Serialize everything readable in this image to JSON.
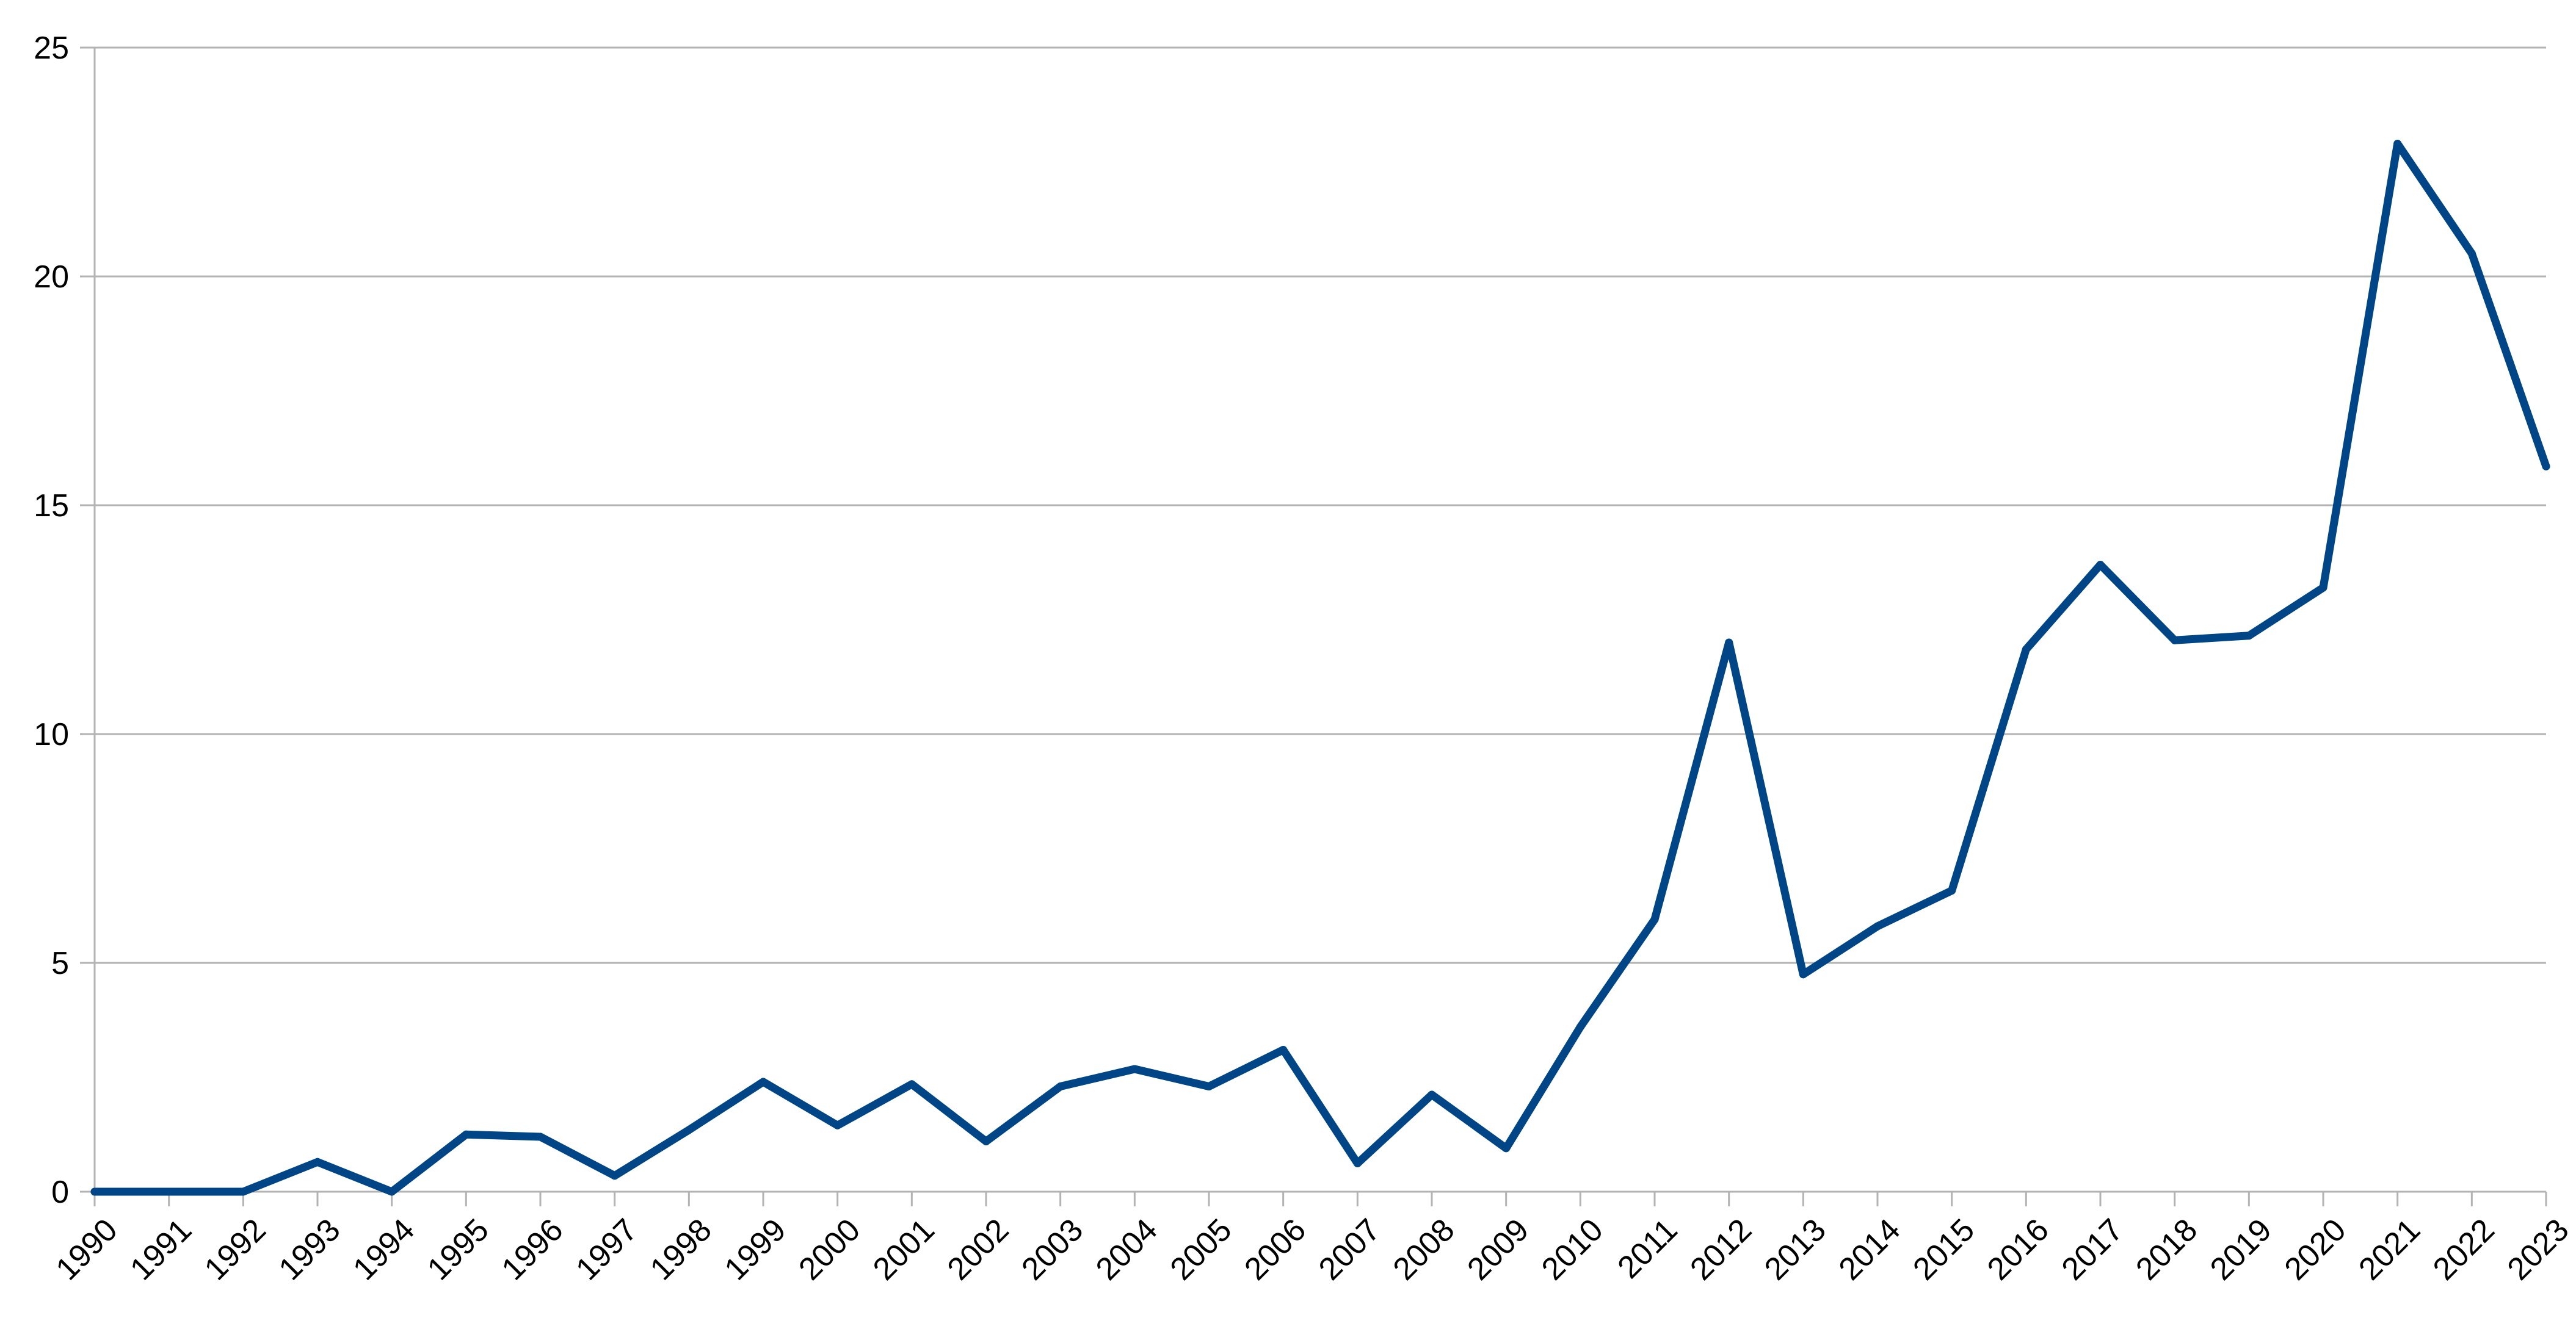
{
  "chart_data": {
    "type": "line",
    "title": "",
    "xlabel": "",
    "ylabel": "",
    "categories": [
      "1990",
      "1991",
      "1992",
      "1993",
      "1994",
      "1995",
      "1996",
      "1997",
      "1998",
      "1999",
      "2000",
      "2001",
      "2002",
      "2003",
      "2004",
      "2005",
      "2006",
      "2007",
      "2008",
      "2009",
      "2010",
      "2011",
      "2012",
      "2013",
      "2014",
      "2015",
      "2016",
      "2017",
      "2018",
      "2019",
      "2020",
      "2021",
      "2022",
      "2023"
    ],
    "series": [
      {
        "color": "#004586",
        "values": [
          0,
          0,
          0,
          0.65,
          0,
          1.25,
          1.2,
          0.35,
          1.35,
          2.4,
          1.45,
          2.35,
          1.1,
          2.3,
          2.68,
          2.3,
          3.1,
          0.62,
          2.12,
          0.95,
          3.6,
          5.95,
          12.0,
          4.75,
          5.8,
          6.58,
          11.85,
          13.7,
          12.05,
          12.15,
          13.2,
          22.9,
          20.5,
          15.85
        ]
      }
    ],
    "ylim": [
      0,
      25
    ],
    "yticks": [
      "0",
      "5",
      "10",
      "15",
      "20",
      "25"
    ],
    "grid": true,
    "legend": "none"
  }
}
